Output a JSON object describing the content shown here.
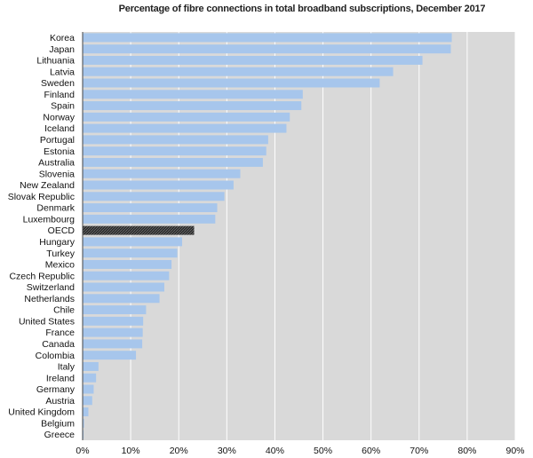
{
  "chart_data": {
    "type": "bar",
    "orientation": "horizontal",
    "title": "Percentage of fibre connections in total broadband subscriptions, December 2017",
    "categories": [
      "Korea",
      "Japan",
      "Lithuania",
      "Latvia",
      "Sweden",
      "Finland",
      "Spain",
      "Norway",
      "Iceland",
      "Portugal",
      "Estonia",
      "Australia",
      "Slovenia",
      "New Zealand",
      "Slovak Republic",
      "Denmark",
      "Luxembourg",
      "OECD",
      "Hungary",
      "Turkey",
      "Mexico",
      "Czech Republic",
      "Switzerland",
      "Netherlands",
      "Chile",
      "United States",
      "France",
      "Canada",
      "Colombia",
      "Italy",
      "Ireland",
      "Germany",
      "Austria",
      "United Kingdom",
      "Belgium",
      "Greece"
    ],
    "values": [
      76.8,
      76.6,
      70.7,
      64.6,
      61.8,
      45.8,
      45.5,
      43.1,
      42.4,
      38.6,
      38.2,
      37.5,
      32.8,
      31.4,
      29.5,
      28.0,
      27.6,
      23.2,
      20.7,
      19.7,
      18.5,
      18.0,
      17.0,
      16.0,
      13.2,
      12.6,
      12.5,
      12.4,
      11.1,
      3.3,
      2.8,
      2.3,
      2.0,
      1.2,
      0.3,
      0.2
    ],
    "highlight": "OECD",
    "xlim": [
      0,
      90
    ],
    "xticks": [
      "0%",
      "10%",
      "20%",
      "30%",
      "40%",
      "50%",
      "60%",
      "70%",
      "80%",
      "90%"
    ],
    "grid": true,
    "colors": {
      "bar": "#a7c6ec",
      "highlight": "#2a2a2a",
      "plot_bg": "#d9d9d9",
      "grid": "#ffffff"
    }
  }
}
